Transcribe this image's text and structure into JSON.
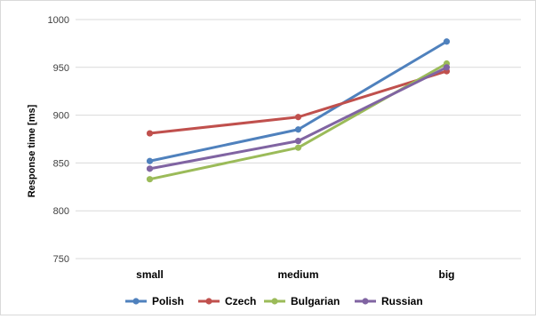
{
  "chart_data": {
    "type": "line",
    "title": "",
    "xlabel": "",
    "ylabel": "Response time [ms]",
    "categories": [
      "small",
      "medium",
      "big"
    ],
    "ylim": [
      750,
      1000
    ],
    "yticks": [
      750,
      800,
      850,
      900,
      950,
      1000
    ],
    "grid": true,
    "legend_position": "bottom",
    "series": [
      {
        "name": "Polish",
        "color": "#4f81bd",
        "values": [
          852,
          885,
          977
        ]
      },
      {
        "name": "Czech",
        "color": "#c0504d",
        "values": [
          881,
          898,
          946
        ]
      },
      {
        "name": "Bulgarian",
        "color": "#9bbb59",
        "values": [
          833,
          866,
          954
        ]
      },
      {
        "name": "Russian",
        "color": "#8064a2",
        "values": [
          844,
          873,
          950
        ]
      }
    ]
  }
}
